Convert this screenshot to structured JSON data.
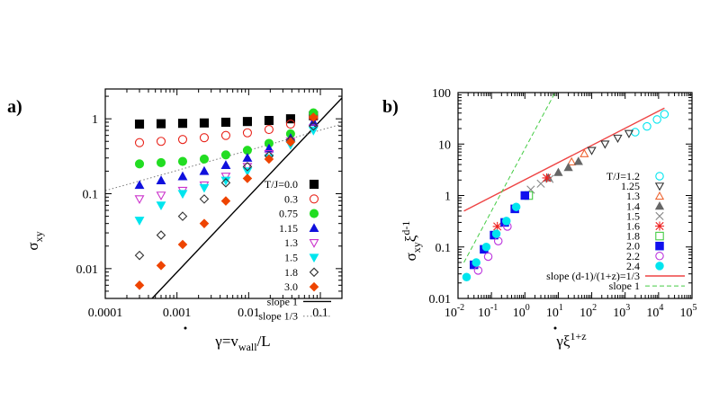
{
  "chart_data": [
    {
      "panel_label": "a)",
      "type": "scatter",
      "x_scale": "log",
      "y_scale": "log",
      "xlim": [
        0.0001,
        0.2
      ],
      "ylim": [
        0.004,
        2.5
      ],
      "xlabel": {
        "gamma_dot": "γ",
        "eq": "=v",
        "sub": "wall",
        "tail": "/L"
      },
      "ylabel": {
        "main": "σ",
        "sub": "xy"
      },
      "x_ticks": [
        "0.0001",
        "0.001",
        "0.01",
        "0.1"
      ],
      "y_ticks": [
        "0.01",
        "0.1",
        "1"
      ],
      "x": [
        0.0003,
        0.0006,
        0.0012,
        0.0024,
        0.0048,
        0.0096,
        0.0192,
        0.0384,
        0.08
      ],
      "series": [
        {
          "name": "T/J=0.0",
          "color": "#000000",
          "marker": "square-filled",
          "values": [
            0.85,
            0.86,
            0.87,
            0.88,
            0.9,
            0.92,
            0.95,
            1.0,
            1.1
          ]
        },
        {
          "name": "0.3",
          "color": "#e8231a",
          "marker": "circle-open",
          "values": [
            0.48,
            0.5,
            0.53,
            0.56,
            0.6,
            0.65,
            0.72,
            0.85,
            1.05
          ]
        },
        {
          "name": "0.75",
          "color": "#22dd22",
          "marker": "circle-filled",
          "values": [
            0.25,
            0.26,
            0.27,
            0.29,
            0.33,
            0.38,
            0.47,
            0.63,
            1.2
          ]
        },
        {
          "name": "1.15",
          "color": "#1010dd",
          "marker": "triangle-up-filled",
          "values": [
            0.13,
            0.15,
            0.17,
            0.2,
            0.24,
            0.3,
            0.4,
            0.55,
            0.9
          ]
        },
        {
          "name": "1.3",
          "color": "#cc33cc",
          "marker": "triangle-down-open",
          "values": [
            0.085,
            0.095,
            0.11,
            0.13,
            0.17,
            0.23,
            0.34,
            0.5,
            0.75
          ]
        },
        {
          "name": "1.5",
          "color": "#00e5ee",
          "marker": "triangle-down-filled",
          "values": [
            0.044,
            0.07,
            0.1,
            0.12,
            0.15,
            0.2,
            0.3,
            0.45,
            0.7
          ]
        },
        {
          "name": "1.8",
          "color": "#333333",
          "marker": "diamond-open",
          "values": [
            0.015,
            0.028,
            0.05,
            0.085,
            0.14,
            0.23,
            0.32,
            0.52,
            0.8
          ]
        },
        {
          "name": "3.0",
          "color": "#ee4400",
          "marker": "diamond-filled",
          "values": [
            0.006,
            0.011,
            0.021,
            0.04,
            0.08,
            0.16,
            0.29,
            0.49,
            1.05
          ]
        }
      ],
      "lines": [
        {
          "name": "slope 1",
          "style": "solid",
          "color": "#000000",
          "points": [
            [
              0.00045,
              0.004
            ],
            [
              0.2,
              1.9
            ]
          ]
        },
        {
          "name": "slope 1/3",
          "style": "dotted",
          "color": "#777777",
          "points": [
            [
              0.0001,
              0.11
            ],
            [
              0.2,
              0.85
            ]
          ]
        }
      ]
    },
    {
      "panel_label": "b)",
      "type": "scatter",
      "x_scale": "log",
      "y_scale": "log",
      "xlim": [
        0.01,
        100000
      ],
      "ylim": [
        0.01,
        100
      ],
      "xlabel": {
        "gamma_dot": "γ",
        "xi": "ξ",
        "sup": "1+z"
      },
      "ylabel": {
        "main": "σ",
        "sub": "xy",
        "xi": "ξ",
        "sup": "d-1"
      },
      "x_ticks": [
        {
          "base": "10",
          "exp": "-2"
        },
        {
          "base": "10",
          "exp": "-1"
        },
        {
          "base": "10",
          "exp": "0"
        },
        {
          "base": "10",
          "exp": "1"
        },
        {
          "base": "10",
          "exp": "2"
        },
        {
          "base": "10",
          "exp": "3"
        },
        {
          "base": "10",
          "exp": "4"
        },
        {
          "base": "10",
          "exp": "5"
        }
      ],
      "y_ticks": [
        "0.01",
        "0.1",
        "1",
        "10",
        "100"
      ],
      "series": [
        {
          "name": "T/J=1.2",
          "color": "#00e5ee",
          "marker": "circle-open",
          "x": [
            2000,
            4500,
            9000,
            15000
          ],
          "values": [
            17,
            22,
            30,
            38
          ]
        },
        {
          "name": "1.25",
          "color": "#333333",
          "marker": "triangle-down-open",
          "x": [
            100,
            250,
            600,
            1300
          ],
          "values": [
            7.5,
            10,
            13,
            16
          ]
        },
        {
          "name": "1.3",
          "color": "#ee6633",
          "marker": "triangle-up-open",
          "x": [
            25,
            60
          ],
          "values": [
            4.5,
            6.5
          ]
        },
        {
          "name": "1.4",
          "color": "#666666",
          "marker": "triangle-up-filled",
          "x": [
            5,
            10,
            20,
            40
          ],
          "values": [
            2.2,
            2.8,
            3.5,
            4.6
          ]
        },
        {
          "name": "1.5",
          "color": "#888888",
          "marker": "cross",
          "x": [
            1.5,
            3,
            5.5
          ],
          "values": [
            1.3,
            1.7,
            2.1
          ]
        },
        {
          "name": "1.6",
          "color": "#ee2222",
          "marker": "star",
          "x": [
            0.15,
            4.5
          ],
          "values": [
            0.25,
            2.2
          ]
        },
        {
          "name": "1.8",
          "color": "#44cc44",
          "marker": "square-open",
          "x": [
            1.3
          ],
          "values": [
            1.0
          ]
        },
        {
          "name": "2.0",
          "color": "#1010ee",
          "marker": "square-filled",
          "x": [
            0.03,
            0.06,
            0.12,
            0.25,
            0.5,
            1.0
          ],
          "values": [
            0.045,
            0.09,
            0.17,
            0.3,
            0.55,
            1.0
          ]
        },
        {
          "name": "2.2",
          "color": "#bb33dd",
          "marker": "circle-open",
          "x": [
            0.04,
            0.08,
            0.16,
            0.3
          ],
          "values": [
            0.035,
            0.065,
            0.13,
            0.25
          ]
        },
        {
          "name": "2.4",
          "color": "#00e5ee",
          "marker": "circle-filled",
          "x": [
            0.018,
            0.035,
            0.07,
            0.14,
            0.28,
            0.55
          ],
          "values": [
            0.026,
            0.05,
            0.1,
            0.18,
            0.32,
            0.6
          ]
        }
      ],
      "lines": [
        {
          "name": "slope (d-1)/(1+z)=1/3",
          "style": "solid",
          "color": "#ee4444",
          "points": [
            [
              0.015,
              0.5
            ],
            [
              15000,
              50
            ]
          ]
        },
        {
          "name": "slope 1",
          "style": "dashed",
          "color": "#44cc44",
          "points": [
            [
              0.015,
              0.05
            ],
            [
              8,
              100
            ]
          ]
        }
      ]
    }
  ]
}
